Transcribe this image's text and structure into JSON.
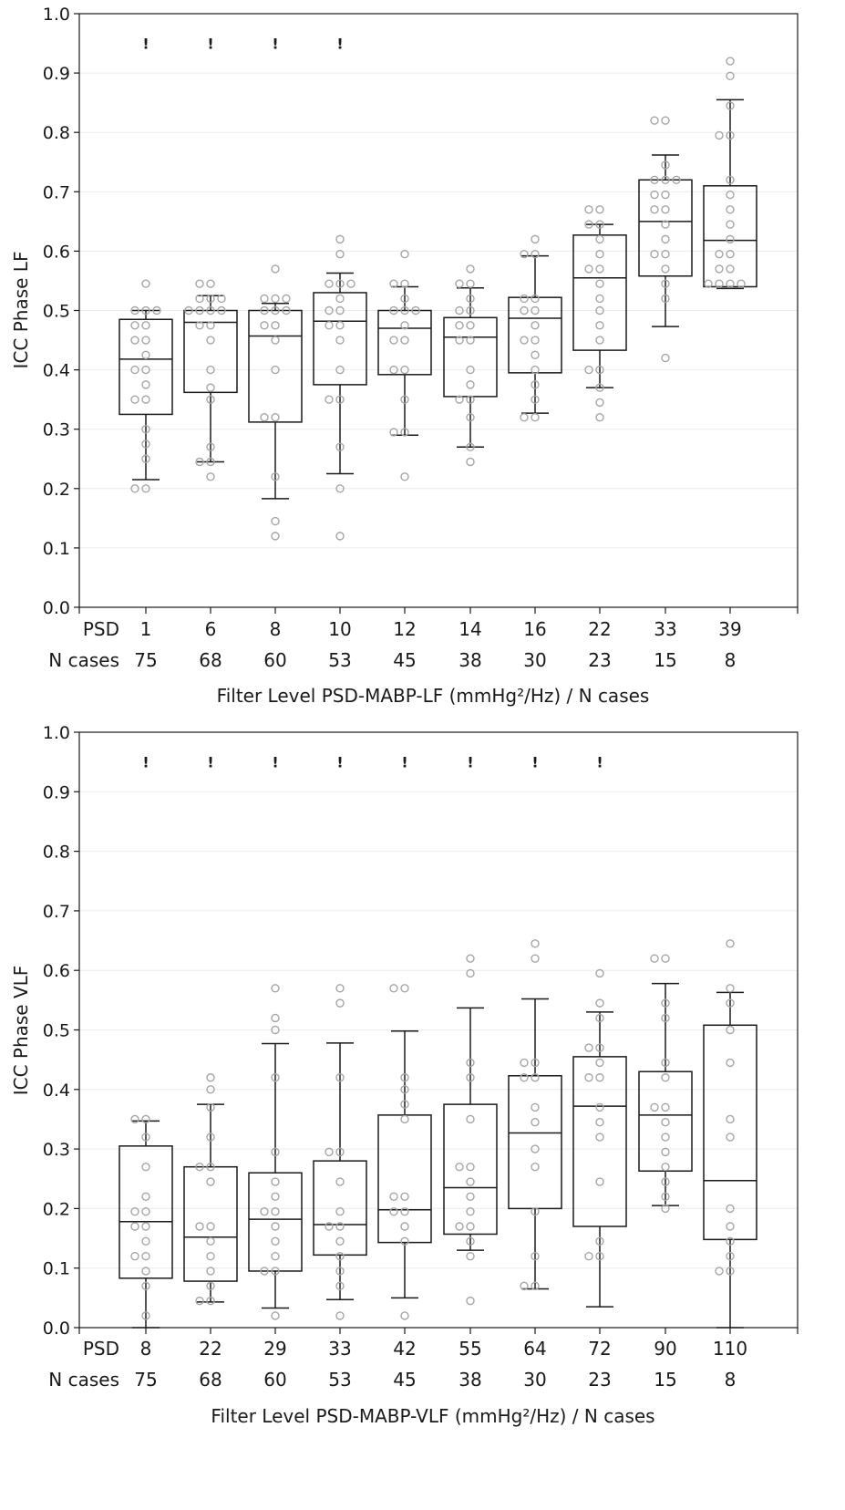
{
  "chart_data": [
    {
      "type": "box",
      "ylabel": "ICC Phase LF",
      "xlabel": "Filter Level PSD-MABP-LF (mmHg²/Hz) / N cases",
      "ylim": [
        0.0,
        1.0
      ],
      "yticks": [
        "0.0",
        "0.1",
        "0.2",
        "0.3",
        "0.4",
        "0.5",
        "0.6",
        "0.7",
        "0.8",
        "0.9",
        "1.0"
      ],
      "row_labels": {
        "psd": "PSD",
        "n": "N cases"
      },
      "psd": [
        "1",
        "6",
        "8",
        "10",
        "12",
        "14",
        "16",
        "22",
        "33",
        "39"
      ],
      "n_cases": [
        "75",
        "68",
        "60",
        "53",
        "45",
        "38",
        "30",
        "23",
        "15",
        "8"
      ],
      "significance_marks": [
        "!",
        "!",
        "!",
        "!",
        "",
        "",
        "",
        "",
        "",
        ""
      ],
      "boxes": [
        {
          "whisker_low": 0.215,
          "q1": 0.325,
          "median": 0.418,
          "q3": 0.485,
          "whisker_high": 0.5
        },
        {
          "whisker_low": 0.245,
          "q1": 0.362,
          "median": 0.48,
          "q3": 0.5,
          "whisker_high": 0.525
        },
        {
          "whisker_low": 0.183,
          "q1": 0.312,
          "median": 0.457,
          "q3": 0.5,
          "whisker_high": 0.512
        },
        {
          "whisker_low": 0.225,
          "q1": 0.375,
          "median": 0.482,
          "q3": 0.53,
          "whisker_high": 0.563
        },
        {
          "whisker_low": 0.29,
          "q1": 0.392,
          "median": 0.47,
          "q3": 0.5,
          "whisker_high": 0.54
        },
        {
          "whisker_low": 0.27,
          "q1": 0.355,
          "median": 0.455,
          "q3": 0.488,
          "whisker_high": 0.538
        },
        {
          "whisker_low": 0.327,
          "q1": 0.395,
          "median": 0.487,
          "q3": 0.522,
          "whisker_high": 0.592
        },
        {
          "whisker_low": 0.37,
          "q1": 0.433,
          "median": 0.555,
          "q3": 0.627,
          "whisker_high": 0.645
        },
        {
          "whisker_low": 0.473,
          "q1": 0.558,
          "median": 0.65,
          "q3": 0.72,
          "whisker_high": 0.762
        },
        {
          "whisker_low": 0.537,
          "q1": 0.54,
          "median": 0.618,
          "q3": 0.71,
          "whisker_high": 0.855
        }
      ],
      "points": [
        [
          0.545,
          0.5,
          0.5,
          0.5,
          0.475,
          0.475,
          0.45,
          0.45,
          0.425,
          0.4,
          0.4,
          0.375,
          0.35,
          0.35,
          0.3,
          0.275,
          0.25,
          0.2,
          0.2
        ],
        [
          0.545,
          0.545,
          0.52,
          0.52,
          0.52,
          0.5,
          0.5,
          0.5,
          0.5,
          0.475,
          0.475,
          0.45,
          0.4,
          0.37,
          0.35,
          0.27,
          0.245,
          0.245,
          0.22
        ],
        [
          0.57,
          0.52,
          0.52,
          0.52,
          0.5,
          0.5,
          0.5,
          0.475,
          0.475,
          0.45,
          0.4,
          0.32,
          0.32,
          0.22,
          0.145,
          0.12
        ],
        [
          0.62,
          0.595,
          0.545,
          0.545,
          0.545,
          0.52,
          0.5,
          0.5,
          0.475,
          0.475,
          0.45,
          0.4,
          0.35,
          0.35,
          0.27,
          0.2,
          0.12
        ],
        [
          0.595,
          0.545,
          0.545,
          0.52,
          0.5,
          0.5,
          0.5,
          0.475,
          0.45,
          0.45,
          0.4,
          0.4,
          0.35,
          0.295,
          0.295,
          0.22
        ],
        [
          0.57,
          0.545,
          0.545,
          0.52,
          0.5,
          0.5,
          0.475,
          0.475,
          0.45,
          0.45,
          0.4,
          0.375,
          0.35,
          0.35,
          0.32,
          0.27,
          0.245
        ],
        [
          0.62,
          0.595,
          0.595,
          0.52,
          0.52,
          0.5,
          0.5,
          0.475,
          0.45,
          0.45,
          0.425,
          0.4,
          0.375,
          0.35,
          0.32,
          0.32
        ],
        [
          0.67,
          0.67,
          0.645,
          0.645,
          0.62,
          0.595,
          0.57,
          0.57,
          0.545,
          0.52,
          0.5,
          0.475,
          0.45,
          0.4,
          0.4,
          0.37,
          0.345,
          0.32
        ],
        [
          0.82,
          0.82,
          0.745,
          0.72,
          0.72,
          0.72,
          0.695,
          0.695,
          0.67,
          0.67,
          0.645,
          0.62,
          0.595,
          0.595,
          0.57,
          0.545,
          0.52,
          0.42
        ],
        [
          0.92,
          0.895,
          0.845,
          0.795,
          0.795,
          0.72,
          0.695,
          0.67,
          0.645,
          0.62,
          0.595,
          0.595,
          0.57,
          0.57,
          0.545,
          0.545,
          0.545,
          0.545
        ]
      ]
    },
    {
      "type": "box",
      "ylabel": "ICC Phase VLF",
      "xlabel": "Filter Level PSD-MABP-VLF (mmHg²/Hz) / N cases",
      "ylim": [
        0.0,
        1.0
      ],
      "yticks": [
        "0.0",
        "0.1",
        "0.2",
        "0.3",
        "0.4",
        "0.5",
        "0.6",
        "0.7",
        "0.8",
        "0.9",
        "1.0"
      ],
      "row_labels": {
        "psd": "PSD",
        "n": "N cases"
      },
      "psd": [
        "8",
        "22",
        "29",
        "33",
        "42",
        "55",
        "64",
        "72",
        "90",
        "110"
      ],
      "n_cases": [
        "75",
        "68",
        "60",
        "53",
        "45",
        "38",
        "30",
        "23",
        "15",
        "8"
      ],
      "significance_marks": [
        "!",
        "!",
        "!",
        "!",
        "!",
        "!",
        "!",
        "!",
        "",
        ""
      ],
      "boxes": [
        {
          "whisker_low": 0.0,
          "q1": 0.083,
          "median": 0.178,
          "q3": 0.305,
          "whisker_high": 0.347
        },
        {
          "whisker_low": 0.043,
          "q1": 0.078,
          "median": 0.152,
          "q3": 0.27,
          "whisker_high": 0.375
        },
        {
          "whisker_low": 0.033,
          "q1": 0.095,
          "median": 0.182,
          "q3": 0.26,
          "whisker_high": 0.477
        },
        {
          "whisker_low": 0.047,
          "q1": 0.122,
          "median": 0.173,
          "q3": 0.28,
          "whisker_high": 0.478
        },
        {
          "whisker_low": 0.05,
          "q1": 0.143,
          "median": 0.198,
          "q3": 0.357,
          "whisker_high": 0.498
        },
        {
          "whisker_low": 0.13,
          "q1": 0.157,
          "median": 0.235,
          "q3": 0.375,
          "whisker_high": 0.537
        },
        {
          "whisker_low": 0.065,
          "q1": 0.2,
          "median": 0.327,
          "q3": 0.423,
          "whisker_high": 0.552
        },
        {
          "whisker_low": 0.035,
          "q1": 0.17,
          "median": 0.372,
          "q3": 0.455,
          "whisker_high": 0.53
        },
        {
          "whisker_low": 0.205,
          "q1": 0.263,
          "median": 0.357,
          "q3": 0.43,
          "whisker_high": 0.578
        },
        {
          "whisker_low": 0.0,
          "q1": 0.148,
          "median": 0.247,
          "q3": 0.508,
          "whisker_high": 0.563
        }
      ],
      "points": [
        [
          0.35,
          0.35,
          0.32,
          0.27,
          0.22,
          0.195,
          0.195,
          0.17,
          0.17,
          0.145,
          0.12,
          0.12,
          0.095,
          0.07,
          0.02
        ],
        [
          0.42,
          0.4,
          0.37,
          0.32,
          0.27,
          0.27,
          0.245,
          0.17,
          0.17,
          0.145,
          0.12,
          0.095,
          0.07,
          0.045,
          0.045
        ],
        [
          0.57,
          0.52,
          0.5,
          0.42,
          0.295,
          0.245,
          0.22,
          0.195,
          0.195,
          0.17,
          0.145,
          0.12,
          0.095,
          0.095,
          0.02
        ],
        [
          0.57,
          0.545,
          0.42,
          0.295,
          0.295,
          0.245,
          0.195,
          0.17,
          0.17,
          0.145,
          0.12,
          0.095,
          0.07,
          0.02
        ],
        [
          0.57,
          0.57,
          0.42,
          0.4,
          0.375,
          0.35,
          0.22,
          0.22,
          0.195,
          0.195,
          0.17,
          0.145,
          0.02
        ],
        [
          0.62,
          0.595,
          0.445,
          0.42,
          0.35,
          0.27,
          0.27,
          0.245,
          0.22,
          0.195,
          0.17,
          0.17,
          0.145,
          0.12,
          0.045
        ],
        [
          0.645,
          0.62,
          0.445,
          0.445,
          0.42,
          0.42,
          0.37,
          0.345,
          0.3,
          0.27,
          0.195,
          0.12,
          0.07,
          0.07
        ],
        [
          0.595,
          0.545,
          0.52,
          0.47,
          0.47,
          0.445,
          0.42,
          0.42,
          0.37,
          0.345,
          0.32,
          0.245,
          0.145,
          0.12,
          0.12
        ],
        [
          0.62,
          0.62,
          0.545,
          0.52,
          0.445,
          0.42,
          0.37,
          0.37,
          0.345,
          0.32,
          0.295,
          0.27,
          0.245,
          0.22,
          0.2
        ],
        [
          0.645,
          0.57,
          0.545,
          0.5,
          0.445,
          0.35,
          0.32,
          0.2,
          0.17,
          0.145,
          0.12,
          0.095,
          0.095
        ]
      ]
    }
  ],
  "colors": {
    "box": "#1a1a1a",
    "points": "#a6a6a6",
    "grid": "#ececec",
    "axis": "#1a1a1a",
    "significance": "#1a1a1a"
  }
}
